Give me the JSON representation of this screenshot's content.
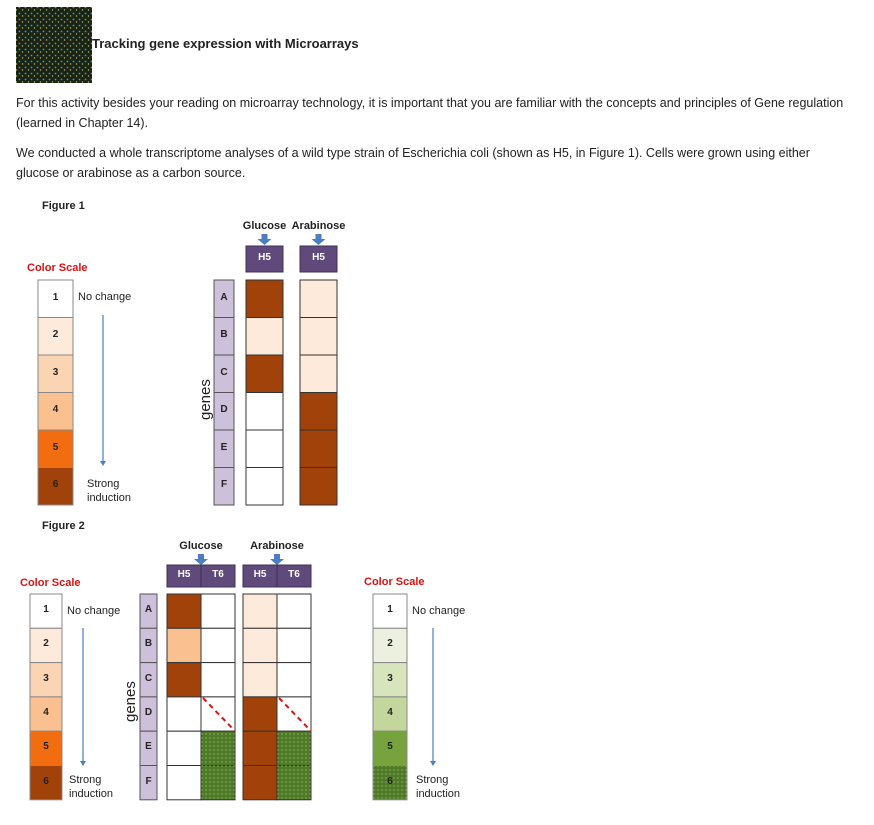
{
  "header": {
    "title": "Tracking gene expression with Microarrays"
  },
  "paragraphs": [
    "For this activity besides your reading on microarray technology, it is important that you are familiar with the concepts and principles of Gene regulation (learned in Chapter 14).",
    "We conducted a whole transcriptome analyses of a wild type strain of Escherichia coli (shown as H5, in Figure 1). Cells were grown using either glucose or arabinose as a carbon source."
  ],
  "figure1": {
    "label": "Figure 1",
    "color_scale": {
      "title": "Color Scale",
      "levels": [
        "1",
        "2",
        "3",
        "4",
        "5",
        "6"
      ],
      "colors": [
        "#ffffff",
        "#fdeada",
        "#fbd4b4",
        "#fac08f",
        "#f26c10",
        "#a0420a"
      ],
      "top_label": "No change",
      "bottom_label": "Strong induction"
    },
    "axis_label": "genes",
    "genes": [
      "A",
      "B",
      "C",
      "D",
      "E",
      "F"
    ],
    "groups": [
      {
        "name": "Glucose",
        "columns": [
          {
            "label": "H5",
            "cells": [
              "#a0420a",
              "#fdeada",
              "#a0420a",
              "#ffffff",
              "#ffffff",
              "#ffffff"
            ]
          }
        ]
      },
      {
        "name": "Arabinose",
        "columns": [
          {
            "label": "H5",
            "cells": [
              "#fdeada",
              "#fdeada",
              "#fdeada",
              "#a0420a",
              "#a0420a",
              "#a0420a"
            ]
          }
        ]
      }
    ]
  },
  "figure2": {
    "label": "Figure 2",
    "color_scales": [
      {
        "title": "Color Scale",
        "levels": [
          "1",
          "2",
          "3",
          "4",
          "5",
          "6"
        ],
        "colors": [
          "#ffffff",
          "#fdeada",
          "#fbd4b4",
          "#fac08f",
          "#f26c10",
          "#a0420a"
        ],
        "top_label": "No change",
        "bottom_label": "Strong induction"
      },
      {
        "title": "Color Scale",
        "levels": [
          "1",
          "2",
          "3",
          "4",
          "5",
          "6"
        ],
        "colors": [
          "#ffffff",
          "#ebf1de",
          "#d7e4bc",
          "#c3d69b",
          "#77a33c",
          "#4f7a28"
        ],
        "top_label": "No change",
        "bottom_label": "Strong induction"
      }
    ],
    "axis_label": "genes",
    "genes": [
      "A",
      "B",
      "C",
      "D",
      "E",
      "F"
    ],
    "groups": [
      {
        "name": "Glucose",
        "columns": [
          {
            "label": "H5",
            "cells": [
              "#a0420a",
              "#fbc08f",
              "#a0420a",
              "#ffffff",
              "#ffffff",
              "#ffffff"
            ]
          },
          {
            "label": "T6",
            "cells": [
              "#ffffff",
              "#ffffff",
              "#ffffff",
              "#ffffff",
              "#4f7a28",
              "#4f7a28"
            ]
          }
        ]
      },
      {
        "name": "Arabinose",
        "columns": [
          {
            "label": "H5",
            "cells": [
              "#fdeada",
              "#fdeada",
              "#fdeada",
              "#a0420a",
              "#a0420a",
              "#a0420a"
            ]
          },
          {
            "label": "T6",
            "cells": [
              "#ffffff",
              "#ffffff",
              "#ffffff",
              "#ffffff",
              "#4f7a28",
              "#4f7a28"
            ]
          }
        ]
      }
    ]
  }
}
